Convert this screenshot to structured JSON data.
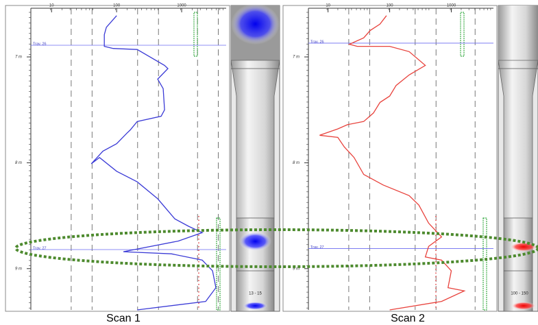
{
  "chart_data": [
    {
      "type": "line",
      "caption": "Scan 1",
      "scale_label": "13 - 15",
      "x_scale": "log",
      "y_inverted": true,
      "xlim": [
        4.8,
        4830
      ],
      "xticks": [
        10,
        100,
        1000
      ],
      "ylim": [
        6.54,
        9.39
      ],
      "yticks": [
        {
          "value": 7,
          "label": "7 m"
        },
        {
          "value": 8,
          "label": "8 m"
        },
        {
          "value": 9,
          "label": "9 m"
        }
      ],
      "annotations": [
        {
          "text": "Trav. 26",
          "y": 6.89
        },
        {
          "text": "Trav. 27",
          "y": 8.82
        }
      ],
      "series": [
        {
          "color": "#3a3ad6",
          "x": [
            100,
            69.5,
            64.7,
            64.7,
            88.6,
            207,
            546,
            615,
            428,
            520,
            546,
            483,
            207,
            162,
            144,
            100,
            61.6,
            40.8,
            54.6,
            100,
            207,
            428,
            785,
            1274,
            2070,
            885,
            127,
            695,
            2070,
            2978,
            3360,
            2336,
            207
          ],
          "values": [
            6.61,
            6.72,
            6.79,
            6.9,
            6.92,
            6.93,
            7.08,
            7.11,
            7.21,
            7.3,
            7.5,
            7.56,
            7.61,
            7.69,
            7.72,
            7.82,
            7.89,
            8.01,
            7.95,
            8.08,
            8.18,
            8.34,
            8.53,
            8.6,
            8.66,
            8.74,
            8.84,
            8.86,
            8.92,
            9.02,
            9.18,
            9.31,
            9.39
          ]
        }
      ]
    },
    {
      "type": "line",
      "caption": "Scan 2",
      "scale_label": "100 - 150",
      "x_scale": "log",
      "y_inverted": true,
      "xlim": [
        4.8,
        4830
      ],
      "xticks": [
        10,
        100,
        1000
      ],
      "ylim": [
        6.54,
        9.39
      ],
      "yticks": [
        {
          "value": 7,
          "label": "7 m"
        },
        {
          "value": 8,
          "label": "8 m"
        },
        {
          "value": 9,
          "label": "9 m"
        }
      ],
      "annotations": [
        {
          "text": "Trav. 26",
          "y": 6.87
        },
        {
          "text": "Trav. 27",
          "y": 8.81
        }
      ],
      "series": [
        {
          "color": "#e8423c",
          "x": [
            88.6,
            69.5,
            48.3,
            37.9,
            22.2,
            29.8,
            100,
            207,
            379,
            207,
            127,
            100,
            69.5,
            54.6,
            37.9,
            20.7,
            14.4,
            7.3,
            14.4,
            18.3,
            26.4,
            37.9,
            78.5,
            207,
            298,
            428,
            695,
            428,
            379,
            695,
            1000,
            885,
            1625,
            695,
            100
          ],
          "values": [
            6.61,
            6.69,
            6.75,
            6.82,
            6.88,
            6.9,
            6.9,
            6.95,
            7.08,
            7.17,
            7.27,
            7.37,
            7.43,
            7.53,
            7.61,
            7.64,
            7.68,
            7.74,
            7.76,
            7.85,
            7.95,
            8.11,
            8.21,
            8.31,
            8.4,
            8.57,
            8.7,
            8.79,
            8.89,
            8.92,
            9.02,
            9.18,
            9.21,
            9.31,
            9.39
          ]
        }
      ]
    }
  ]
}
